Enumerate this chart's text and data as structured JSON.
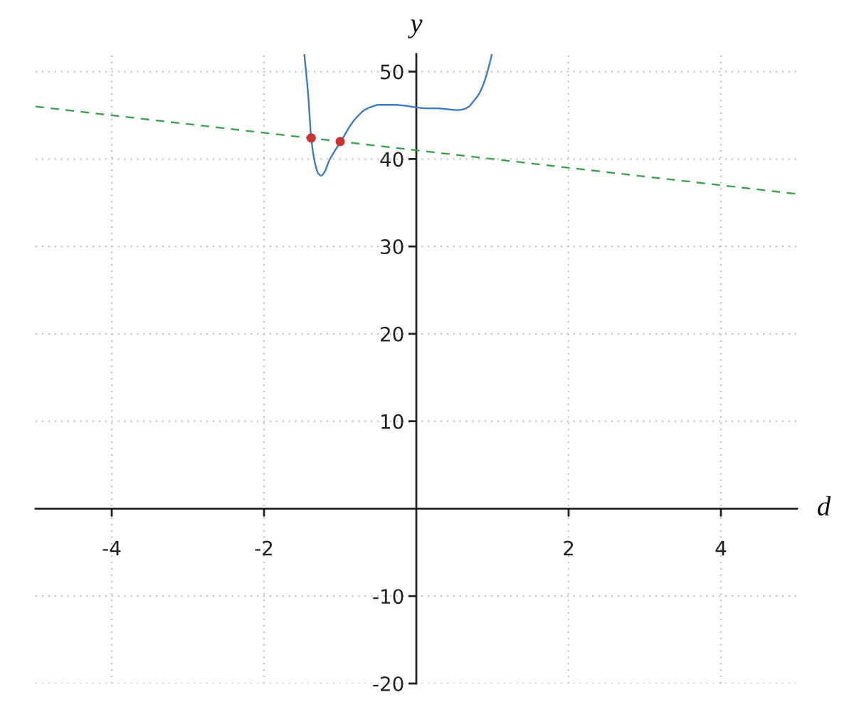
{
  "chart_data": {
    "type": "line",
    "xlabel": "d",
    "ylabel": "y",
    "xlim": [
      -5,
      5
    ],
    "ylim": [
      -20,
      52
    ],
    "xticks": [
      -4,
      -2,
      2,
      4
    ],
    "yticks": [
      -20,
      -10,
      10,
      20,
      30,
      40,
      50
    ],
    "grid": true,
    "series": [
      {
        "color": "#3a7bc8",
        "line_style": "solid",
        "x": [
          -1.47,
          -1.42,
          -1.38,
          -1.33,
          -1.29,
          -1.25,
          -1.2,
          -1.15,
          -1.08,
          -1.0,
          -0.93,
          -0.87,
          -0.78,
          -0.68,
          -0.58,
          -0.49,
          -0.4,
          -0.3,
          -0.15,
          0.0,
          0.13,
          0.26,
          0.4,
          0.54,
          0.62,
          0.69,
          0.75,
          0.82,
          0.87,
          0.91,
          0.95,
          0.99
        ],
        "values": [
          51.9,
          47.3,
          42.4,
          39.5,
          38.4,
          38.1,
          38.6,
          39.7,
          40.8,
          41.9,
          42.9,
          43.8,
          44.8,
          45.6,
          46.0,
          46.2,
          46.2,
          46.2,
          46.1,
          45.9,
          45.8,
          45.8,
          45.7,
          45.6,
          45.7,
          46.0,
          46.6,
          47.4,
          48.3,
          49.3,
          50.5,
          51.9
        ]
      },
      {
        "color": "#3ca04c",
        "line_style": "dashed",
        "x": [
          -5,
          5
        ],
        "values": [
          46,
          36
        ]
      },
      {
        "type": "scatter",
        "color": "#cc3333",
        "marker": "circle",
        "x": [
          -1.38,
          -1.0
        ],
        "values": [
          42.4,
          42.0
        ]
      }
    ]
  }
}
